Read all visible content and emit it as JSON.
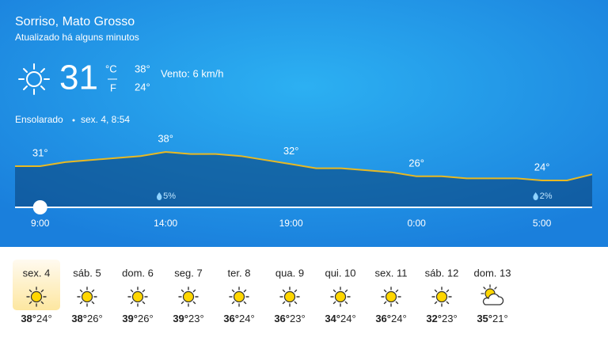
{
  "header": {
    "location": "Sorriso, Mato Grosso",
    "updated": "Atualizado há alguns minutos"
  },
  "current": {
    "temperature": "31",
    "unit_c": "°C",
    "unit_f": "F",
    "high": "38°",
    "low": "24°",
    "wind": "Vento: 6 km/h",
    "condition": "Ensolarado",
    "date": "sex. 4, 8:54"
  },
  "hourly": {
    "values": [
      31,
      31,
      33,
      34,
      35,
      36,
      38,
      37,
      37,
      36,
      34,
      32,
      30,
      30,
      29,
      28,
      26,
      26,
      25,
      25,
      25,
      24,
      24,
      27
    ],
    "value_labels": [
      null,
      "31°",
      null,
      null,
      null,
      null,
      "38°",
      null,
      null,
      null,
      null,
      "32°",
      null,
      null,
      null,
      null,
      "26°",
      null,
      null,
      null,
      null,
      "24°",
      null,
      null
    ],
    "precip_labels": [
      null,
      null,
      null,
      null,
      null,
      null,
      "5%",
      null,
      null,
      null,
      null,
      null,
      null,
      null,
      null,
      null,
      null,
      null,
      null,
      null,
      null,
      "2%",
      null,
      null
    ],
    "time_labels": [
      null,
      "9:00",
      null,
      null,
      null,
      null,
      "14:00",
      null,
      null,
      null,
      null,
      "19:00",
      null,
      null,
      null,
      null,
      "0:00",
      null,
      null,
      null,
      null,
      "5:00",
      null,
      null
    ]
  },
  "daily": [
    {
      "day": "sex. 4",
      "high": "38°",
      "low": "24°"
    },
    {
      "day": "sáb. 5",
      "high": "38°",
      "low": "26°"
    },
    {
      "day": "dom. 6",
      "high": "39°",
      "low": "26°"
    },
    {
      "day": "seg. 7",
      "high": "39°",
      "low": "23°"
    },
    {
      "day": "ter. 8",
      "high": "36°",
      "low": "24°"
    },
    {
      "day": "qua. 9",
      "high": "36°",
      "low": "23°"
    },
    {
      "day": "qui. 10",
      "high": "34°",
      "low": "24°"
    },
    {
      "day": "sex. 11",
      "high": "36°",
      "low": "24°"
    },
    {
      "day": "sáb. 12",
      "high": "32°",
      "low": "23°"
    },
    {
      "day": "dom. 13",
      "high": "35°",
      "low": "21°"
    }
  ]
}
